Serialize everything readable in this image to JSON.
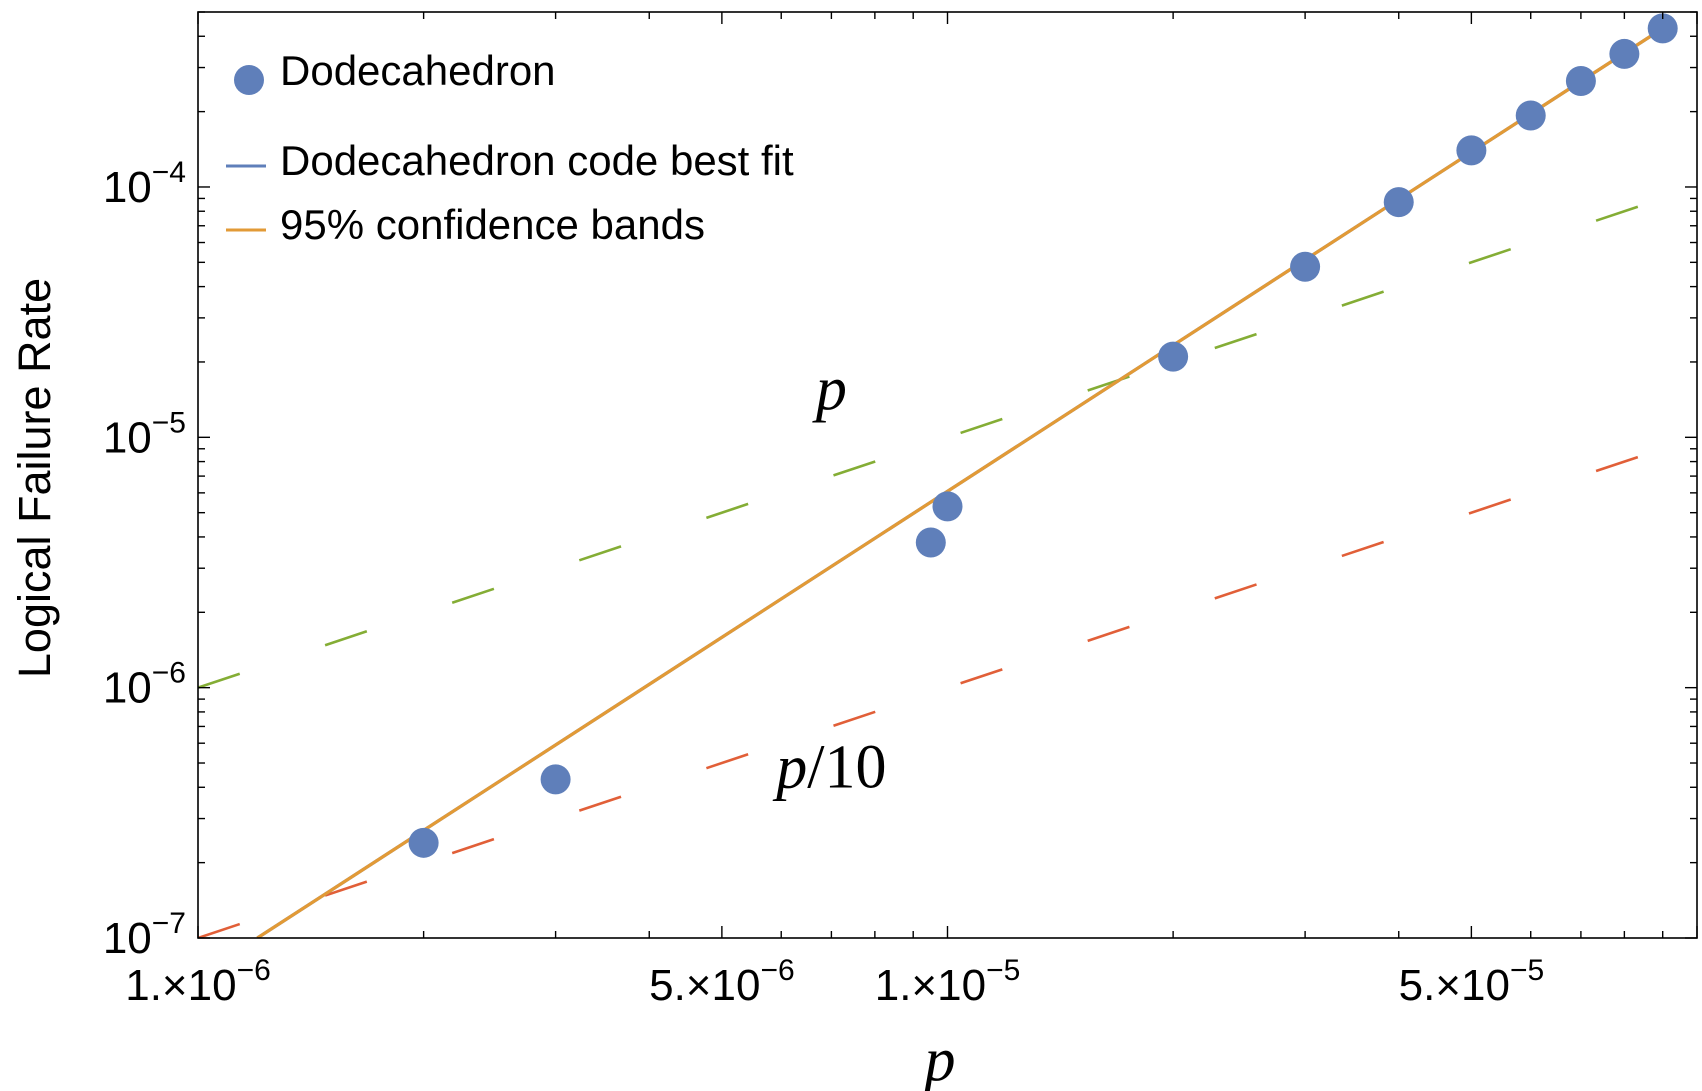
{
  "chart_data": {
    "type": "scatter",
    "scale": "log-log",
    "xlabel": "p",
    "ylabel": "Logical Failure Rate",
    "xlim": [
      1e-06,
      0.0001
    ],
    "ylim": [
      1e-07,
      0.0005
    ],
    "x_tick_labels": [
      {
        "value": 1e-06,
        "mantissa": "1.",
        "exponent": "−6"
      },
      {
        "value": 5e-06,
        "mantissa": "5.",
        "exponent": "−6"
      },
      {
        "value": 1e-05,
        "mantissa": "1.",
        "exponent": "−5"
      },
      {
        "value": 5e-05,
        "mantissa": "5.",
        "exponent": "−5"
      }
    ],
    "y_tick_labels": [
      {
        "value": 1e-07,
        "base": "10",
        "exponent": "−7"
      },
      {
        "value": 1e-06,
        "base": "10",
        "exponent": "−6"
      },
      {
        "value": 1e-05,
        "base": "10",
        "exponent": "−5"
      },
      {
        "value": 0.0001,
        "base": "10",
        "exponent": "−4"
      }
    ],
    "series": [
      {
        "name": "Dodecahedron",
        "kind": "points",
        "color": "#5f7fba",
        "points": [
          {
            "x": 2e-06,
            "y": 2.4e-07
          },
          {
            "x": 3e-06,
            "y": 4.3e-07
          },
          {
            "x": 9.5e-06,
            "y": 3.8e-06
          },
          {
            "x": 1e-05,
            "y": 5.3e-06
          },
          {
            "x": 2e-05,
            "y": 2.1e-05
          },
          {
            "x": 3e-05,
            "y": 4.8e-05
          },
          {
            "x": 4e-05,
            "y": 8.7e-05
          },
          {
            "x": 5e-05,
            "y": 0.00014
          },
          {
            "x": 6e-05,
            "y": 0.000193
          },
          {
            "x": 7e-05,
            "y": 0.000265
          },
          {
            "x": 8e-05,
            "y": 0.00034
          },
          {
            "x": 9e-05,
            "y": 0.00043
          }
        ]
      },
      {
        "name": "Dodecahedron code best fit",
        "kind": "line",
        "color": "#5f7fba",
        "x": [
          1.2e-06,
          9e-05
        ],
        "y": [
          1e-07,
          0.00043
        ]
      },
      {
        "name": "95% confidence bands",
        "kind": "line",
        "color": "#e29a36",
        "x": [
          1.2e-06,
          9e-05
        ],
        "y": [
          1e-07,
          0.00043
        ]
      },
      {
        "name": "p",
        "kind": "dashed-reference",
        "color": "#84ad35",
        "x": [
          1e-06,
          9e-05
        ],
        "y": [
          1e-06,
          9e-05
        ]
      },
      {
        "name": "p/10",
        "kind": "dashed-reference",
        "color": "#e15f38",
        "x": [
          1e-06,
          9e-05
        ],
        "y": [
          1e-07,
          9e-06
        ]
      }
    ],
    "legend": {
      "placement": "top-left",
      "entries": [
        {
          "label": "Dodecahedron",
          "symbol": "point",
          "color": "#5f7fba"
        },
        {
          "label": "Dodecahedron code best fit",
          "symbol": "line",
          "color": "#5f7fba"
        },
        {
          "label": "95% confidence bands",
          "symbol": "line",
          "color": "#e29a36"
        }
      ]
    },
    "annotations": [
      {
        "text": "p",
        "for_series": "p",
        "anchor": {
          "x": 7e-06,
          "y": 1.3e-05
        }
      },
      {
        "text": "p/10",
        "for_series": "p/10",
        "anchor": {
          "x": 7e-06,
          "y": 4e-07
        }
      }
    ]
  }
}
